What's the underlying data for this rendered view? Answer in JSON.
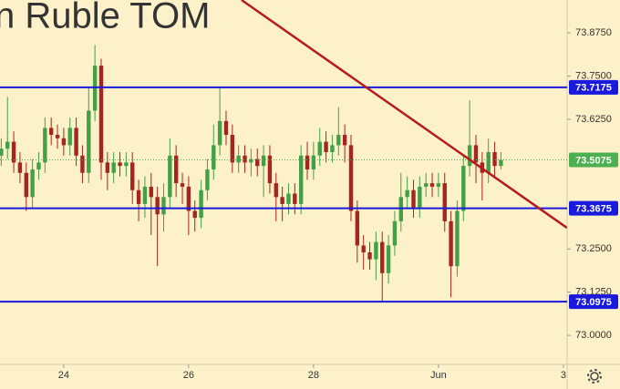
{
  "chart_data": {
    "type": "candlestick",
    "title": "n Ruble TOM",
    "x": [
      0,
      0.1,
      0.2,
      0.3,
      0.4,
      0.5,
      0.6,
      0.7,
      0.8,
      0.9,
      1,
      1.1,
      1.2,
      1.3,
      1.4,
      1.5,
      1.6,
      1.7,
      1.8,
      1.9,
      2,
      2.1,
      2.2,
      2.3,
      2.4,
      2.5,
      2.6,
      2.7,
      2.8,
      2.9,
      3,
      3.1,
      3.2,
      3.3,
      3.4,
      3.5,
      3.6,
      3.7,
      3.8,
      3.9,
      4,
      4.1,
      4.2,
      4.3,
      4.4,
      4.5,
      4.6,
      4.7,
      4.8,
      4.9,
      5,
      5.1,
      5.2,
      5.3,
      5.4,
      5.5,
      5.6,
      5.7,
      5.8,
      5.9,
      6,
      6.1,
      6.2,
      6.3,
      6.4,
      6.5,
      6.6,
      6.7,
      6.8,
      6.9,
      7,
      7.1,
      7.2,
      7.3,
      7.4,
      7.5,
      7.6,
      7.7,
      7.8,
      7.9,
      8
    ],
    "open": [
      73.52,
      73.54,
      73.56,
      73.5,
      73.47,
      73.4,
      73.48,
      73.5,
      73.6,
      73.58,
      73.57,
      73.55,
      73.6,
      73.52,
      73.47,
      73.65,
      73.78,
      73.5,
      73.47,
      73.5,
      73.49,
      73.5,
      73.42,
      73.38,
      73.43,
      73.4,
      73.35,
      73.4,
      73.52,
      73.44,
      73.43,
      73.36,
      73.34,
      73.42,
      73.48,
      73.55,
      73.62,
      73.58,
      73.5,
      73.52,
      73.5,
      73.51,
      73.49,
      73.52,
      73.44,
      73.4,
      73.38,
      73.41,
      73.38,
      73.52,
      73.48,
      73.52,
      73.56,
      73.53,
      73.55,
      73.58,
      73.55,
      73.36,
      73.26,
      73.24,
      73.22,
      73.27,
      73.18,
      73.26,
      73.33,
      73.4,
      73.42,
      73.37,
      73.43,
      73.44,
      73.43,
      73.44,
      73.33,
      73.2,
      73.36,
      73.49,
      73.55,
      73.5,
      73.47,
      73.53,
      73.49
    ],
    "high": [
      73.57,
      73.69,
      73.59,
      73.53,
      73.5,
      73.51,
      73.53,
      73.63,
      73.63,
      73.61,
      73.6,
      73.63,
      73.63,
      73.55,
      73.72,
      73.84,
      73.8,
      73.53,
      73.53,
      73.53,
      73.53,
      73.53,
      73.45,
      73.46,
      73.47,
      73.43,
      73.44,
      73.57,
      73.55,
      73.47,
      73.46,
      73.39,
      73.45,
      73.51,
      73.61,
      73.72,
      73.65,
      73.61,
      73.55,
      73.55,
      73.54,
      73.54,
      73.55,
      73.55,
      73.47,
      73.43,
      73.44,
      73.44,
      73.55,
      73.56,
      73.56,
      73.6,
      73.59,
      73.58,
      73.66,
      73.61,
      73.58,
      73.39,
      73.29,
      73.27,
      73.3,
      73.3,
      73.29,
      73.36,
      73.47,
      73.46,
      73.45,
      73.46,
      73.47,
      73.47,
      73.47,
      73.47,
      73.36,
      73.39,
      73.52,
      73.68,
      73.58,
      73.53,
      73.57,
      73.56,
      73.53
    ],
    "low": [
      73.49,
      73.51,
      73.47,
      73.44,
      73.36,
      73.37,
      73.45,
      73.47,
      73.55,
      73.54,
      73.52,
      73.52,
      73.49,
      73.44,
      73.44,
      73.62,
      73.45,
      73.42,
      73.44,
      73.46,
      73.46,
      73.38,
      73.33,
      73.34,
      73.29,
      73.2,
      73.3,
      73.37,
      73.4,
      73.38,
      73.29,
      73.3,
      73.31,
      73.39,
      73.45,
      73.52,
      73.55,
      73.47,
      73.47,
      73.47,
      73.46,
      73.46,
      73.4,
      73.41,
      73.33,
      73.33,
      73.35,
      73.35,
      73.35,
      73.45,
      73.45,
      73.49,
      73.5,
      73.5,
      73.52,
      73.5,
      73.33,
      73.21,
      73.19,
      73.19,
      73.16,
      73.1,
      73.15,
      73.23,
      73.3,
      73.37,
      73.34,
      73.34,
      73.4,
      73.4,
      73.4,
      73.3,
      73.11,
      73.17,
      73.33,
      73.46,
      73.44,
      73.39,
      73.44,
      73.46,
      73.48
    ],
    "close": [
      73.54,
      73.56,
      73.5,
      73.47,
      73.4,
      73.48,
      73.5,
      73.6,
      73.58,
      73.57,
      73.55,
      73.6,
      73.52,
      73.47,
      73.65,
      73.78,
      73.5,
      73.47,
      73.5,
      73.49,
      73.5,
      73.42,
      73.38,
      73.43,
      73.4,
      73.35,
      73.4,
      73.52,
      73.44,
      73.43,
      73.36,
      73.34,
      73.42,
      73.48,
      73.55,
      73.62,
      73.58,
      73.5,
      73.52,
      73.5,
      73.51,
      73.49,
      73.52,
      73.44,
      73.4,
      73.38,
      73.41,
      73.38,
      73.52,
      73.48,
      73.52,
      73.56,
      73.53,
      73.55,
      73.58,
      73.55,
      73.36,
      73.26,
      73.24,
      73.22,
      73.27,
      73.18,
      73.26,
      73.33,
      73.4,
      73.42,
      73.37,
      73.43,
      73.44,
      73.43,
      73.44,
      73.33,
      73.2,
      73.36,
      73.49,
      73.55,
      73.5,
      73.47,
      73.53,
      73.49,
      73.5075
    ],
    "up_color": "#43a047",
    "down_color": "#a5261e",
    "xlim": [
      -0.02,
      9.06
    ],
    "xticks": [
      {
        "value": 1,
        "label": "24"
      },
      {
        "value": 3,
        "label": "26"
      },
      {
        "value": 5,
        "label": "28"
      },
      {
        "value": 7,
        "label": "Jun"
      },
      {
        "value": 9,
        "label": "3"
      }
    ],
    "ylim": [
      72.916,
      73.97
    ],
    "yticks": [
      {
        "value": 73.875,
        "label": "73.8750"
      },
      {
        "value": 73.75,
        "label": "73.7500"
      },
      {
        "value": 73.625,
        "label": "73.6250"
      },
      {
        "value": 73.25,
        "label": "73.2500"
      },
      {
        "value": 73.125,
        "label": "73.1250"
      },
      {
        "value": 73,
        "label": "73.0000"
      }
    ],
    "levels": [
      73.7175,
      73.3675,
      73.0975
    ],
    "level_color": "#1a1adf",
    "last_price": 73.5075,
    "last_price_color": "#4caf50",
    "trend_line": {
      "x": [
        3.847,
        9.058
      ],
      "y": [
        73.97,
        73.311
      ],
      "color": "#b51d1d"
    }
  }
}
